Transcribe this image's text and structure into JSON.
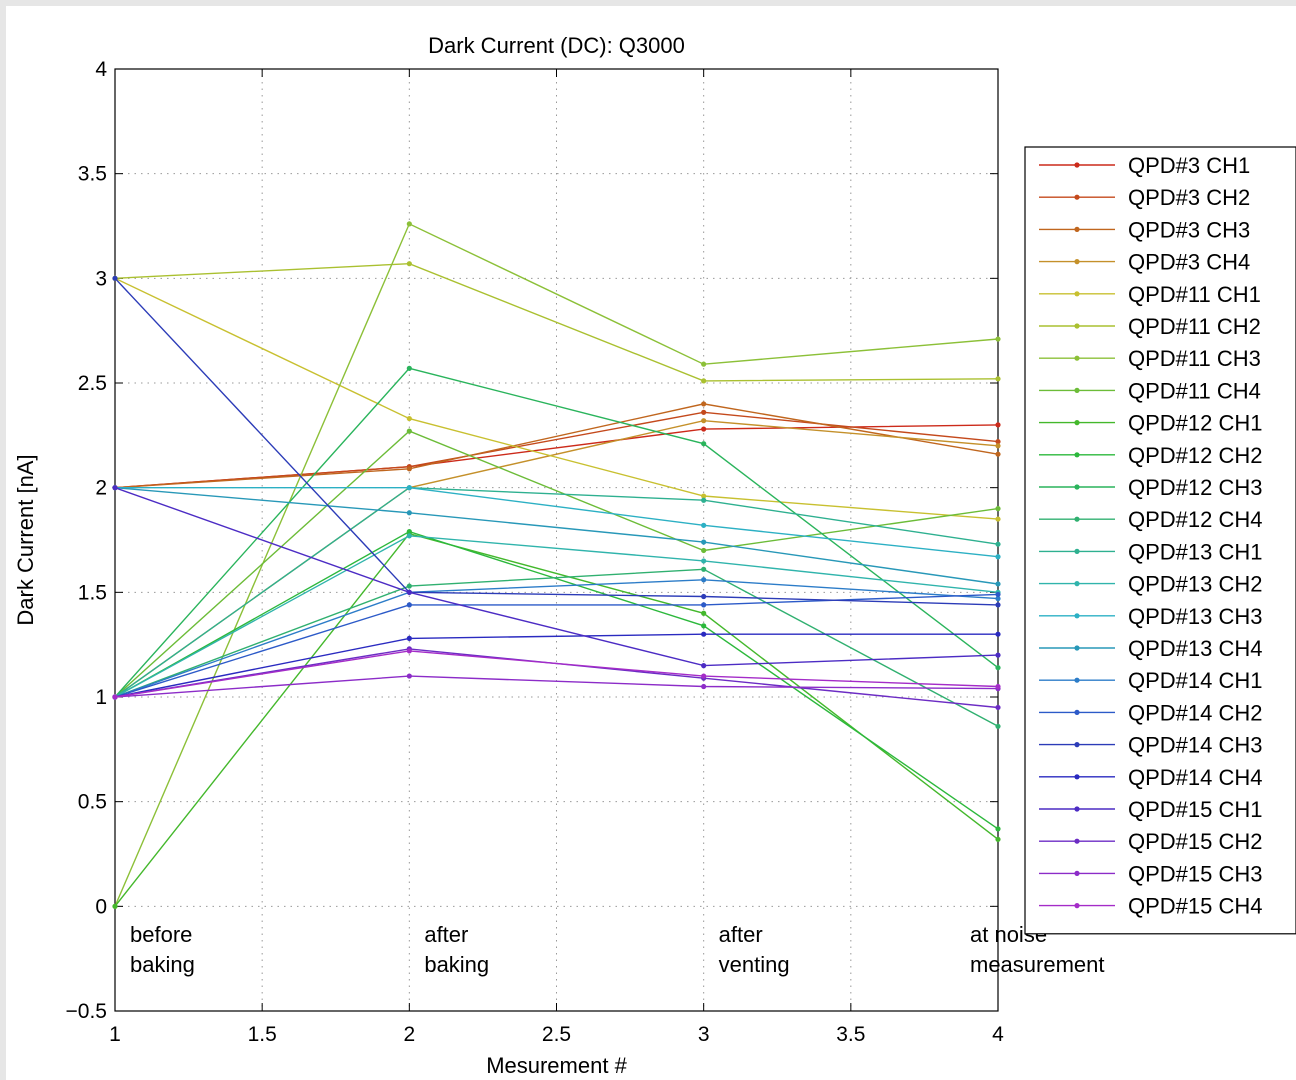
{
  "chart_data": {
    "type": "line",
    "title": "Dark Current (DC): Q3000",
    "xlabel": "Mesurement #",
    "ylabel": "Dark Current [nA]",
    "xlim": [
      1,
      4
    ],
    "ylim": [
      -0.5,
      4
    ],
    "xticks": [
      "1",
      "1.5",
      "2",
      "2.5",
      "3",
      "3.5",
      "4"
    ],
    "yticks": [
      "−0.5",
      "0",
      "0.5",
      "1",
      "1.5",
      "2",
      "2.5",
      "3",
      "3.5",
      "4"
    ],
    "grid": true,
    "legend_position": "outside-right",
    "x": [
      1,
      2,
      3,
      4
    ],
    "annotations": [
      {
        "lines": [
          "before",
          "baking"
        ],
        "x": 1
      },
      {
        "lines": [
          "after",
          "baking"
        ],
        "x": 2
      },
      {
        "lines": [
          "after",
          "venting"
        ],
        "x": 3
      },
      {
        "lines": [
          "at noise",
          "measurement"
        ],
        "x": 4
      }
    ],
    "series": [
      {
        "name": "QPD#3 CH1",
        "color": "#cc2a1a",
        "values": [
          2.0,
          2.1,
          2.28,
          2.3
        ]
      },
      {
        "name": "QPD#3 CH2",
        "color": "#c4491c",
        "values": [
          2.0,
          2.1,
          2.36,
          2.22
        ]
      },
      {
        "name": "QPD#3 CH3",
        "color": "#c0661e",
        "values": [
          2.0,
          2.09,
          2.4,
          2.16
        ]
      },
      {
        "name": "QPD#3 CH4",
        "color": "#c4902a",
        "values": [
          1.0,
          2.0,
          2.32,
          2.2
        ]
      },
      {
        "name": "QPD#11 CH1",
        "color": "#c8c030",
        "values": [
          3.0,
          2.33,
          1.96,
          1.85
        ]
      },
      {
        "name": "QPD#11 CH2",
        "color": "#aac030",
        "values": [
          3.0,
          3.07,
          2.51,
          2.52
        ]
      },
      {
        "name": "QPD#11 CH3",
        "color": "#8cc038",
        "values": [
          0.0,
          3.26,
          2.59,
          2.71
        ]
      },
      {
        "name": "QPD#11 CH4",
        "color": "#6cbc38",
        "values": [
          1.0,
          2.27,
          1.7,
          1.9
        ]
      },
      {
        "name": "QPD#12 CH1",
        "color": "#44b82c",
        "values": [
          0.0,
          1.78,
          1.4,
          0.32
        ]
      },
      {
        "name": "QPD#12 CH2",
        "color": "#2cb83c",
        "values": [
          1.0,
          1.79,
          1.34,
          0.37
        ]
      },
      {
        "name": "QPD#12 CH3",
        "color": "#2ab45c",
        "values": [
          1.0,
          2.57,
          2.21,
          1.14
        ]
      },
      {
        "name": "QPD#12 CH4",
        "color": "#30b070",
        "values": [
          1.0,
          1.53,
          1.61,
          0.86
        ]
      },
      {
        "name": "QPD#13 CH1",
        "color": "#2eb090",
        "values": [
          1.0,
          2.0,
          1.94,
          1.73
        ]
      },
      {
        "name": "QPD#13 CH2",
        "color": "#30b4ac",
        "values": [
          1.0,
          1.77,
          1.65,
          1.5
        ]
      },
      {
        "name": "QPD#13 CH3",
        "color": "#2cb0c4",
        "values": [
          2.0,
          2.0,
          1.82,
          1.67
        ]
      },
      {
        "name": "QPD#13 CH4",
        "color": "#2898b8",
        "values": [
          2.0,
          1.88,
          1.74,
          1.54
        ]
      },
      {
        "name": "QPD#14 CH1",
        "color": "#2c7cc8",
        "values": [
          1.0,
          1.5,
          1.56,
          1.47
        ]
      },
      {
        "name": "QPD#14 CH2",
        "color": "#2c5ac8",
        "values": [
          1.0,
          1.44,
          1.44,
          1.49
        ]
      },
      {
        "name": "QPD#14 CH3",
        "color": "#2c3cb8",
        "values": [
          3.0,
          1.5,
          1.48,
          1.44
        ]
      },
      {
        "name": "QPD#14 CH4",
        "color": "#2a2ac0",
        "values": [
          1.0,
          1.28,
          1.3,
          1.3
        ]
      },
      {
        "name": "QPD#15 CH1",
        "color": "#4c2cc4",
        "values": [
          2.0,
          1.5,
          1.15,
          1.2
        ]
      },
      {
        "name": "QPD#15 CH2",
        "color": "#6c2cc4",
        "values": [
          1.0,
          1.23,
          1.09,
          0.95
        ]
      },
      {
        "name": "QPD#15 CH3",
        "color": "#8c2cc8",
        "values": [
          1.0,
          1.1,
          1.05,
          1.04
        ]
      },
      {
        "name": "QPD#15 CH4",
        "color": "#a42cc8",
        "values": [
          1.0,
          1.22,
          1.1,
          1.05
        ]
      }
    ]
  }
}
